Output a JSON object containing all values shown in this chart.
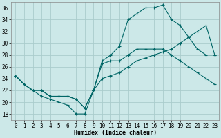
{
  "xlabel": "Humidex (Indice chaleur)",
  "bg_color": "#cce8e8",
  "grid_color": "#aacccc",
  "line_color": "#006666",
  "xlim": [
    -0.5,
    23.5
  ],
  "ylim": [
    17,
    37
  ],
  "yticks": [
    18,
    20,
    22,
    24,
    26,
    28,
    30,
    32,
    34,
    36
  ],
  "xticks": [
    0,
    1,
    2,
    3,
    4,
    5,
    6,
    7,
    8,
    9,
    10,
    11,
    12,
    13,
    14,
    15,
    16,
    17,
    18,
    19,
    20,
    21,
    22,
    23
  ],
  "line1_x": [
    0,
    1,
    2,
    3,
    4,
    5,
    6,
    7,
    8,
    9,
    10,
    11,
    12,
    13,
    14,
    15,
    16,
    17,
    18,
    19,
    20,
    21,
    22,
    23
  ],
  "line1_y": [
    24.5,
    23,
    22,
    21,
    20.5,
    20,
    19.5,
    18,
    18,
    22,
    27,
    28,
    29.5,
    34,
    35,
    36,
    36,
    36.5,
    34,
    33,
    31,
    29,
    28,
    28
  ],
  "line2_x": [
    0,
    1,
    2,
    3,
    4,
    5,
    6,
    7,
    8,
    9,
    10,
    11,
    12,
    13,
    14,
    15,
    16,
    17,
    18,
    19,
    20,
    21,
    22,
    23
  ],
  "line2_y": [
    24.5,
    23,
    22,
    22,
    21,
    21,
    21,
    20.5,
    19,
    22,
    26.5,
    27,
    27,
    28,
    29,
    29,
    29,
    29,
    28,
    27,
    26,
    25,
    24,
    23
  ],
  "line3_x": [
    0,
    1,
    2,
    3,
    4,
    5,
    6,
    7,
    8,
    9,
    10,
    11,
    12,
    13,
    14,
    15,
    16,
    17,
    18,
    19,
    20,
    21,
    22,
    23
  ],
  "line3_y": [
    24.5,
    23,
    22,
    22,
    21,
    21,
    21,
    20.5,
    19,
    22,
    24,
    24.5,
    25,
    26,
    27,
    27.5,
    28,
    28.5,
    29,
    30,
    31,
    32,
    33,
    28
  ],
  "tick_fontsize": 5.5,
  "xlabel_fontsize": 6,
  "linewidth": 0.8,
  "markersize": 3.0
}
